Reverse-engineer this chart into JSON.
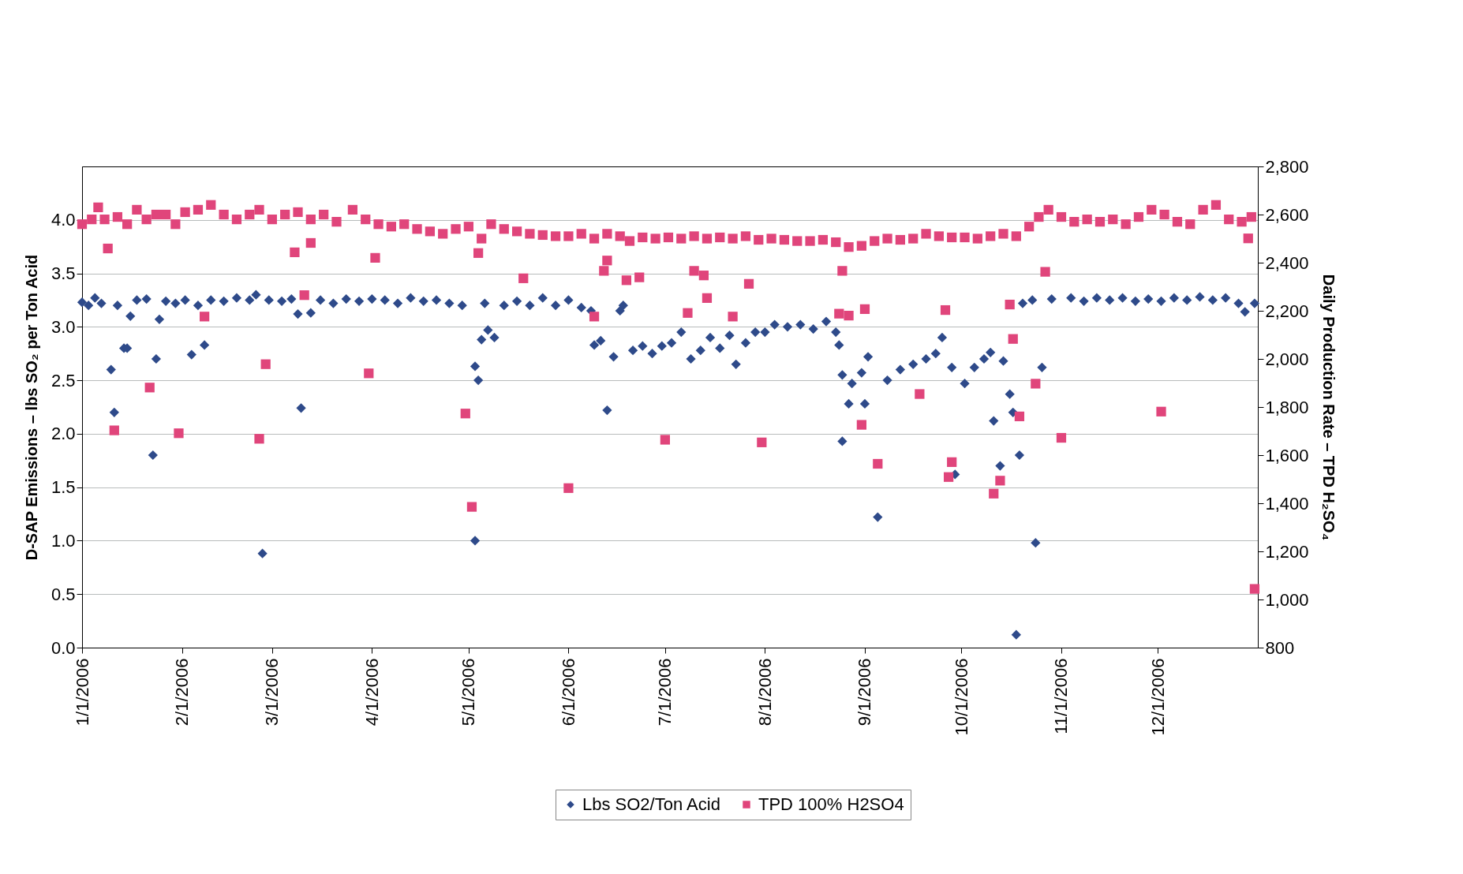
{
  "chart_data": {
    "type": "scatter",
    "xlabel": null,
    "ylabel": "D-SAP Emissions – lbs SO₂ per Ton Acid",
    "y2label": "Daily Production Rate – TPD H₂SO₄",
    "xlim": [
      "2006-01-01",
      "2007-01-01"
    ],
    "xticks": [
      {
        "value": "2006-01-01",
        "label": "1/1/2006"
      },
      {
        "value": "2006-02-01",
        "label": "2/1/2006"
      },
      {
        "value": "2006-03-01",
        "label": "3/1/2006"
      },
      {
        "value": "2006-04-01",
        "label": "4/1/2006"
      },
      {
        "value": "2006-05-01",
        "label": "5/1/2006"
      },
      {
        "value": "2006-06-01",
        "label": "6/1/2006"
      },
      {
        "value": "2006-07-01",
        "label": "7/1/2006"
      },
      {
        "value": "2006-08-01",
        "label": "8/1/2006"
      },
      {
        "value": "2006-09-01",
        "label": "9/1/2006"
      },
      {
        "value": "2006-10-01",
        "label": "10/1/2006"
      },
      {
        "value": "2006-11-01",
        "label": "11/1/2006"
      },
      {
        "value": "2006-12-01",
        "label": "12/1/2006"
      }
    ],
    "ylim": [
      0,
      4.5
    ],
    "yticks": [
      {
        "value": 0,
        "label": "0.0"
      },
      {
        "value": 0.5,
        "label": "0.5"
      },
      {
        "value": 1,
        "label": "1.0"
      },
      {
        "value": 1.5,
        "label": "1.5"
      },
      {
        "value": 2,
        "label": "2.0"
      },
      {
        "value": 2.5,
        "label": "2.5"
      },
      {
        "value": 3,
        "label": "3.0"
      },
      {
        "value": 3.5,
        "label": "3.5"
      },
      {
        "value": 4,
        "label": "4.0"
      }
    ],
    "y2lim": [
      800,
      2800
    ],
    "y2ticks": [
      {
        "value": 800,
        "label": "800"
      },
      {
        "value": 1000,
        "label": "1,000"
      },
      {
        "value": 1200,
        "label": "1,200"
      },
      {
        "value": 1400,
        "label": "1,400"
      },
      {
        "value": 1600,
        "label": "1,600"
      },
      {
        "value": 1800,
        "label": "1,800"
      },
      {
        "value": 2000,
        "label": "2,000"
      },
      {
        "value": 2200,
        "label": "2,200"
      },
      {
        "value": 2400,
        "label": "2,400"
      },
      {
        "value": 2600,
        "label": "2,600"
      },
      {
        "value": 2800,
        "label": "2,800"
      }
    ],
    "grid": "y",
    "legend": "bottom",
    "series": [
      {
        "name": "Lbs SO2/Ton Acid",
        "color": "#2e4a8a",
        "marker": "diamond",
        "x": [
          "2006-01-01",
          "2006-01-03",
          "2006-01-05",
          "2006-01-07",
          "2006-01-10",
          "2006-01-11",
          "2006-01-12",
          "2006-01-14",
          "2006-01-15",
          "2006-01-16",
          "2006-01-18",
          "2006-01-21",
          "2006-01-23",
          "2006-01-24",
          "2006-01-25",
          "2006-01-27",
          "2006-01-30",
          "2006-02-02",
          "2006-02-04",
          "2006-02-06",
          "2006-02-08",
          "2006-02-10",
          "2006-02-14",
          "2006-02-18",
          "2006-02-22",
          "2006-02-24",
          "2006-02-26",
          "2006-02-28",
          "2006-03-04",
          "2006-03-07",
          "2006-03-09",
          "2006-03-10",
          "2006-03-13",
          "2006-03-16",
          "2006-03-20",
          "2006-03-24",
          "2006-03-28",
          "2006-04-01",
          "2006-04-05",
          "2006-04-09",
          "2006-04-13",
          "2006-04-17",
          "2006-04-21",
          "2006-04-25",
          "2006-04-29",
          "2006-05-03",
          "2006-05-03",
          "2006-05-04",
          "2006-05-05",
          "2006-05-06",
          "2006-05-07",
          "2006-05-09",
          "2006-05-12",
          "2006-05-16",
          "2006-05-20",
          "2006-05-24",
          "2006-05-28",
          "2006-06-01",
          "2006-06-05",
          "2006-06-08",
          "2006-06-09",
          "2006-06-11",
          "2006-06-13",
          "2006-06-15",
          "2006-06-17",
          "2006-06-18",
          "2006-06-21",
          "2006-06-24",
          "2006-06-27",
          "2006-06-30",
          "2006-07-03",
          "2006-07-06",
          "2006-07-09",
          "2006-07-12",
          "2006-07-15",
          "2006-07-18",
          "2006-07-21",
          "2006-07-23",
          "2006-07-26",
          "2006-07-29",
          "2006-08-01",
          "2006-08-04",
          "2006-08-08",
          "2006-08-12",
          "2006-08-16",
          "2006-08-20",
          "2006-08-23",
          "2006-08-24",
          "2006-08-25",
          "2006-08-25",
          "2006-08-27",
          "2006-08-28",
          "2006-08-31",
          "2006-09-01",
          "2006-09-02",
          "2006-09-05",
          "2006-09-08",
          "2006-09-12",
          "2006-09-16",
          "2006-09-20",
          "2006-09-23",
          "2006-09-25",
          "2006-09-28",
          "2006-09-29",
          "2006-10-02",
          "2006-10-05",
          "2006-10-08",
          "2006-10-10",
          "2006-10-11",
          "2006-10-13",
          "2006-10-14",
          "2006-10-16",
          "2006-10-17",
          "2006-10-18",
          "2006-10-19",
          "2006-10-20",
          "2006-10-23",
          "2006-10-24",
          "2006-10-26",
          "2006-10-29",
          "2006-11-04",
          "2006-11-08",
          "2006-11-12",
          "2006-11-16",
          "2006-11-20",
          "2006-11-24",
          "2006-11-28",
          "2006-12-02",
          "2006-12-06",
          "2006-12-10",
          "2006-12-14",
          "2006-12-18",
          "2006-12-22",
          "2006-12-26",
          "2006-12-28",
          "2006-12-31"
        ],
        "values": [
          3.23,
          3.2,
          3.27,
          3.22,
          2.6,
          2.2,
          3.2,
          2.8,
          2.8,
          3.1,
          3.25,
          3.26,
          1.8,
          2.7,
          3.07,
          3.24,
          3.22,
          3.25,
          2.74,
          3.2,
          2.83,
          3.25,
          3.24,
          3.27,
          3.25,
          3.3,
          0.88,
          3.25,
          3.24,
          3.26,
          3.12,
          2.24,
          3.13,
          3.25,
          3.22,
          3.26,
          3.24,
          3.26,
          3.25,
          3.22,
          3.27,
          3.24,
          3.25,
          3.22,
          3.2,
          1.0,
          2.63,
          2.5,
          2.88,
          3.22,
          2.97,
          2.9,
          3.2,
          3.24,
          3.2,
          3.27,
          3.2,
          3.25,
          3.18,
          3.15,
          2.83,
          2.87,
          2.22,
          2.72,
          3.15,
          3.2,
          2.78,
          2.82,
          2.75,
          2.82,
          2.85,
          2.95,
          2.7,
          2.78,
          2.9,
          2.8,
          2.92,
          2.65,
          2.85,
          2.95,
          2.95,
          3.02,
          3.0,
          3.02,
          2.98,
          3.05,
          2.95,
          2.83,
          2.55,
          1.93,
          2.28,
          2.47,
          2.57,
          2.28,
          2.72,
          1.22,
          2.5,
          2.6,
          2.65,
          2.7,
          2.75,
          2.9,
          2.62,
          1.62,
          2.47,
          2.62,
          2.7,
          2.76,
          2.12,
          1.7,
          2.68,
          2.37,
          2.2,
          0.12,
          1.8,
          3.22,
          3.25,
          0.98,
          2.62,
          3.26,
          3.27,
          3.24,
          3.27,
          3.25,
          3.27,
          3.24,
          3.26,
          3.24,
          3.27,
          3.25,
          3.28,
          3.25,
          3.27,
          3.22,
          3.14,
          3.22
        ]
      },
      {
        "name": "TPD 100% H2SO4",
        "color": "#e0457b",
        "marker": "square",
        "axis": "y2",
        "x": [
          "2006-01-01",
          "2006-01-04",
          "2006-01-06",
          "2006-01-08",
          "2006-01-09",
          "2006-01-11",
          "2006-01-12",
          "2006-01-15",
          "2006-01-18",
          "2006-01-21",
          "2006-01-22",
          "2006-01-24",
          "2006-01-27",
          "2006-01-30",
          "2006-01-31",
          "2006-02-02",
          "2006-02-06",
          "2006-02-08",
          "2006-02-10",
          "2006-02-14",
          "2006-02-18",
          "2006-02-22",
          "2006-02-25",
          "2006-02-25",
          "2006-02-27",
          "2006-03-01",
          "2006-03-05",
          "2006-03-08",
          "2006-03-09",
          "2006-03-11",
          "2006-03-13",
          "2006-03-13",
          "2006-03-17",
          "2006-03-21",
          "2006-03-26",
          "2006-03-30",
          "2006-03-31",
          "2006-04-02",
          "2006-04-03",
          "2006-04-07",
          "2006-04-11",
          "2006-04-15",
          "2006-04-19",
          "2006-04-23",
          "2006-04-27",
          "2006-04-30",
          "2006-05-01",
          "2006-05-02",
          "2006-05-04",
          "2006-05-05",
          "2006-05-08",
          "2006-05-12",
          "2006-05-16",
          "2006-05-18",
          "2006-05-20",
          "2006-05-24",
          "2006-05-28",
          "2006-06-01",
          "2006-06-01",
          "2006-06-05",
          "2006-06-09",
          "2006-06-09",
          "2006-06-12",
          "2006-06-13",
          "2006-06-13",
          "2006-06-17",
          "2006-06-19",
          "2006-06-20",
          "2006-06-23",
          "2006-06-24",
          "2006-06-28",
          "2006-07-01",
          "2006-07-02",
          "2006-07-06",
          "2006-07-08",
          "2006-07-10",
          "2006-07-10",
          "2006-07-13",
          "2006-07-14",
          "2006-07-14",
          "2006-07-18",
          "2006-07-22",
          "2006-07-22",
          "2006-07-26",
          "2006-07-27",
          "2006-07-30",
          "2006-07-31",
          "2006-08-03",
          "2006-08-07",
          "2006-08-11",
          "2006-08-15",
          "2006-08-19",
          "2006-08-23",
          "2006-08-24",
          "2006-08-25",
          "2006-08-27",
          "2006-08-27",
          "2006-08-31",
          "2006-08-31",
          "2006-09-01",
          "2006-09-04",
          "2006-09-05",
          "2006-09-08",
          "2006-09-12",
          "2006-09-16",
          "2006-09-18",
          "2006-09-20",
          "2006-09-24",
          "2006-09-26",
          "2006-09-27",
          "2006-09-28",
          "2006-09-28",
          "2006-10-02",
          "2006-10-06",
          "2006-10-10",
          "2006-10-11",
          "2006-10-13",
          "2006-10-14",
          "2006-10-16",
          "2006-10-17",
          "2006-10-18",
          "2006-10-19",
          "2006-10-22",
          "2006-10-24",
          "2006-10-25",
          "2006-10-27",
          "2006-10-28",
          "2006-11-01",
          "2006-11-01",
          "2006-11-05",
          "2006-11-09",
          "2006-11-13",
          "2006-11-17",
          "2006-11-21",
          "2006-11-25",
          "2006-11-29",
          "2006-12-02",
          "2006-12-03",
          "2006-12-07",
          "2006-12-11",
          "2006-12-15",
          "2006-12-19",
          "2006-12-23",
          "2006-12-27",
          "2006-12-29",
          "2006-12-30",
          "2006-12-31"
        ],
        "values": [
          2560,
          2580,
          2630,
          2580,
          2459,
          1703,
          2590,
          2560,
          2620,
          2580,
          1881,
          2600,
          2600,
          2560,
          1691,
          2610,
          2620,
          2176,
          2640,
          2600,
          2580,
          2600,
          2620,
          1668,
          1978,
          2580,
          2600,
          2443,
          2610,
          2265,
          2482,
          2580,
          2600,
          2570,
          2620,
          2580,
          1940,
          2420,
          2560,
          2550,
          2560,
          2540,
          2530,
          2520,
          2540,
          1773,
          2550,
          1385,
          2440,
          2500,
          2560,
          2540,
          2530,
          2335,
          2520,
          2515,
          2510,
          2510,
          1463,
          2520,
          2500,
          2176,
          2366,
          2409,
          2520,
          2510,
          2327,
          2490,
          2339,
          2505,
          2500,
          1664,
          2505,
          2500,
          2191,
          2366,
          2510,
          2347,
          2253,
          2500,
          2505,
          2500,
          2176,
          2510,
          2312,
          2495,
          1653,
          2500,
          2495,
          2490,
          2490,
          2495,
          2485,
          2188,
          2366,
          2465,
          2180,
          1726,
          2470,
          2207,
          2490,
          1564,
          2500,
          2495,
          2500,
          1854,
          2520,
          2510,
          2203,
          1509,
          1571,
          2505,
          2505,
          2500,
          2510,
          1440,
          1494,
          2520,
          2226,
          2083,
          2510,
          1761,
          2550,
          1897,
          2590,
          2362,
          2620,
          1672,
          2590,
          2570,
          2580,
          2570,
          2580,
          2560,
          2590,
          2620,
          1781,
          2600,
          2570,
          2560,
          2620,
          2640,
          2580,
          2570,
          2501,
          2590,
          1044
        ]
      }
    ]
  }
}
